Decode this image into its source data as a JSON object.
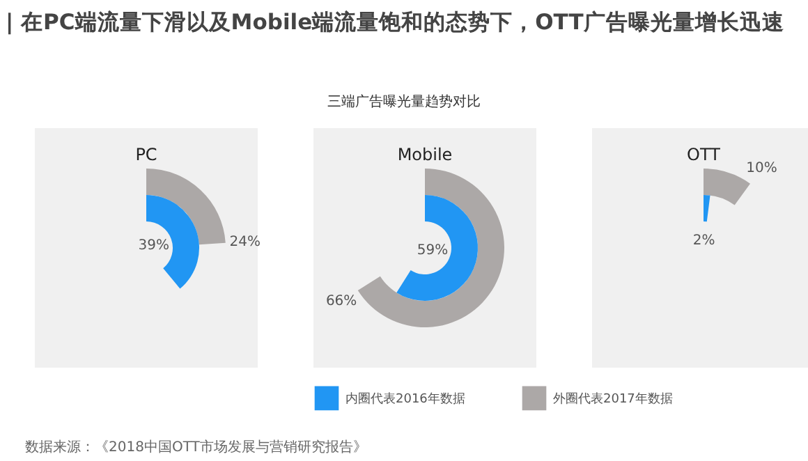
{
  "chart_data": [
    {
      "type": "other",
      "title": "| 在PC端流量下滑以及Mobile端流量饱和的态势下，OTT广告曝光量增长迅速",
      "subtitle": "三端广告曝光量趋势对比",
      "annotations": [
        "数据来源：《2018中国OTT市场发展与营销研究报告》"
      ]
    },
    {
      "type": "donut",
      "title": "PC",
      "series": [
        {
          "color": "#aca8a7",
          "values": [
            24
          ],
          "value_labels": [
            "24%"
          ]
        },
        {
          "color": "#2196f3",
          "values": [
            39
          ],
          "value_labels": [
            "39%"
          ]
        }
      ]
    },
    {
      "type": "donut",
      "title": "Mobile",
      "legend": "bottom",
      "series": [
        {
          "name": "外圈代表2017年数据",
          "color": "#aca8a7",
          "values": [
            66
          ],
          "value_labels": [
            "66%"
          ]
        },
        {
          "name": "内圈代表2016年数据",
          "color": "#2196f3",
          "values": [
            59
          ],
          "value_labels": [
            "59%"
          ]
        }
      ]
    },
    {
      "type": "donut",
      "title": "OTT",
      "series": [
        {
          "color": "#aca8a7",
          "values": [
            10
          ],
          "value_labels": [
            "10%"
          ]
        },
        {
          "color": "#2196f3",
          "values": [
            2
          ],
          "value_labels": [
            "2%"
          ]
        }
      ]
    }
  ]
}
